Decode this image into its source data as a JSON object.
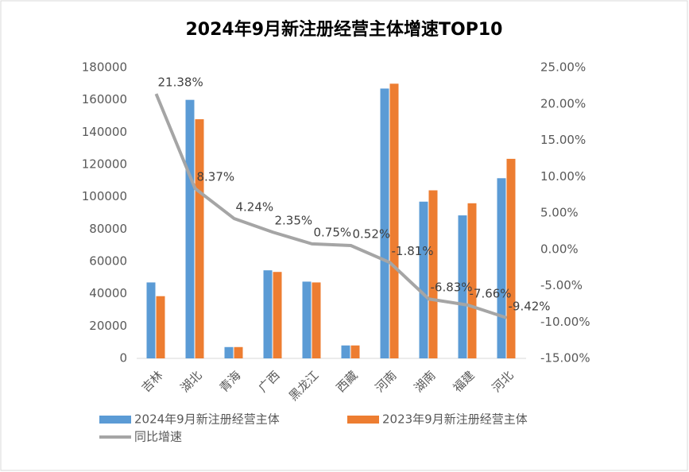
{
  "chart_data": {
    "type": "bar",
    "title": "2024年9月新注册经营主体增速TOP10",
    "categories": [
      "吉林",
      "湖北",
      "青海",
      "广西",
      "黑龙江",
      "西藏",
      "河南",
      "湖南",
      "福建",
      "河北"
    ],
    "series": [
      {
        "name": "2024年9月新注册经营主体",
        "color": "#5b9bd5",
        "type": "bar",
        "values": [
          47000,
          160000,
          7000,
          54500,
          47500,
          8000,
          167000,
          97000,
          88500,
          111500
        ]
      },
      {
        "name": "2023年9月新注册经营主体",
        "color": "#ed7d31",
        "type": "bar",
        "values": [
          38500,
          148000,
          7000,
          53500,
          47000,
          8000,
          170000,
          104000,
          96000,
          123500
        ]
      },
      {
        "name": "同比增速",
        "color": "#a5a5a5",
        "type": "line",
        "axis": "y2",
        "values": [
          21.38,
          8.37,
          4.24,
          2.35,
          0.75,
          0.52,
          -1.81,
          -6.83,
          -7.66,
          -9.42
        ],
        "value_labels": [
          "21.38%",
          "8.37%",
          "4.24%",
          "2.35%",
          "0.75%",
          "0.52%",
          "-1.81%",
          "-6.83%",
          "-7.66%",
          "-9.42%"
        ]
      }
    ],
    "ylim": [
      0,
      180000
    ],
    "yticks": [
      0,
      20000,
      40000,
      60000,
      80000,
      100000,
      120000,
      140000,
      160000,
      180000
    ],
    "y2lim": [
      -15,
      25
    ],
    "y2ticks": [
      {
        "value": -15,
        "label": "-15.00%"
      },
      {
        "value": -10,
        "label": "-10.00%"
      },
      {
        "value": -5,
        "label": "-5.00%"
      },
      {
        "value": 0,
        "label": "0.00%"
      },
      {
        "value": 5,
        "label": "5.00%"
      },
      {
        "value": 10,
        "label": "10.00%"
      },
      {
        "value": 15,
        "label": "15.00%"
      },
      {
        "value": 20,
        "label": "20.00%"
      },
      {
        "value": 25,
        "label": "25.00%"
      }
    ],
    "grid": false
  }
}
